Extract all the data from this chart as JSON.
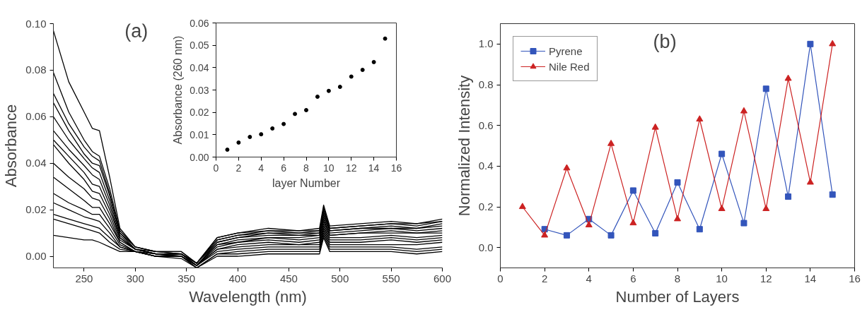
{
  "chart_data": [
    {
      "type": "line",
      "xlabel": "Wavelength (nm)",
      "ylabel": "Absorbance",
      "annotations": [
        "(a)"
      ],
      "xlim": [
        220,
        600
      ],
      "ylim": [
        -0.005,
        0.1
      ],
      "xticks": [
        250,
        300,
        350,
        400,
        450,
        500,
        550,
        600
      ],
      "yticks": [
        {
          "value": 0,
          "label": "0.00"
        },
        {
          "value": 0.02,
          "label": "0.02"
        },
        {
          "value": 0.04,
          "label": "0.04"
        },
        {
          "value": 0.06,
          "label": "0.06"
        },
        {
          "value": 0.08,
          "label": "0.08"
        },
        {
          "value": 0.1,
          "label": "0.10"
        }
      ],
      "x": [
        220,
        235,
        250,
        258,
        265,
        275,
        285,
        300,
        320,
        345,
        360,
        380,
        400,
        430,
        460,
        480,
        484,
        490,
        520,
        550,
        575,
        600
      ],
      "series": [
        {
          "color": "#000000",
          "values": [
            0.097,
            0.075,
            0.062,
            0.055,
            0.054,
            0.034,
            0.012,
            0.004,
            0.002,
            0.002,
            -0.003,
            0.008,
            0.01,
            0.012,
            0.011,
            0.012,
            0.022,
            0.013,
            0.014,
            0.015,
            0.014,
            0.016
          ]
        },
        {
          "color": "#000000",
          "values": [
            0.079,
            0.062,
            0.05,
            0.045,
            0.043,
            0.029,
            0.011,
            0.004,
            0.002,
            0.002,
            -0.003,
            0.008,
            0.01,
            0.011,
            0.011,
            0.011,
            0.021,
            0.012,
            0.013,
            0.014,
            0.014,
            0.015
          ]
        },
        {
          "color": "#000000",
          "values": [
            0.07,
            0.057,
            0.047,
            0.043,
            0.041,
            0.027,
            0.01,
            0.004,
            0.002,
            0.001,
            -0.003,
            0.007,
            0.009,
            0.011,
            0.01,
            0.011,
            0.02,
            0.012,
            0.013,
            0.014,
            0.013,
            0.015
          ]
        },
        {
          "color": "#000000",
          "values": [
            0.066,
            0.054,
            0.044,
            0.04,
            0.039,
            0.026,
            0.01,
            0.003,
            0.002,
            0.001,
            -0.003,
            0.007,
            0.009,
            0.01,
            0.01,
            0.01,
            0.019,
            0.011,
            0.012,
            0.013,
            0.012,
            0.014
          ]
        },
        {
          "color": "#000000",
          "values": [
            0.06,
            0.05,
            0.042,
            0.038,
            0.036,
            0.024,
            0.009,
            0.003,
            0.001,
            0.001,
            -0.003,
            0.006,
            0.008,
            0.01,
            0.009,
            0.01,
            0.018,
            0.011,
            0.012,
            0.012,
            0.012,
            0.013
          ]
        },
        {
          "color": "#000000",
          "values": [
            0.054,
            0.046,
            0.039,
            0.035,
            0.033,
            0.022,
            0.008,
            0.003,
            0.001,
            0.001,
            -0.004,
            0.006,
            0.008,
            0.009,
            0.009,
            0.009,
            0.017,
            0.01,
            0.011,
            0.012,
            0.011,
            0.012
          ]
        },
        {
          "color": "#000000",
          "values": [
            0.05,
            0.043,
            0.036,
            0.031,
            0.03,
            0.02,
            0.008,
            0.003,
            0.001,
            0.001,
            -0.004,
            0.005,
            0.007,
            0.008,
            0.008,
            0.009,
            0.016,
            0.009,
            0.01,
            0.011,
            0.01,
            0.011
          ]
        },
        {
          "color": "#000000",
          "values": [
            0.048,
            0.04,
            0.033,
            0.028,
            0.027,
            0.018,
            0.007,
            0.003,
            0.001,
            0.001,
            -0.004,
            0.005,
            0.006,
            0.008,
            0.007,
            0.008,
            0.015,
            0.009,
            0.01,
            0.01,
            0.01,
            0.01
          ]
        },
        {
          "color": "#000000",
          "values": [
            0.04,
            0.034,
            0.029,
            0.025,
            0.024,
            0.016,
            0.006,
            0.002,
            0.001,
            0.0,
            -0.004,
            0.004,
            0.006,
            0.007,
            0.006,
            0.007,
            0.014,
            0.008,
            0.008,
            0.009,
            0.008,
            0.009
          ]
        },
        {
          "color": "#000000",
          "values": [
            0.034,
            0.029,
            0.024,
            0.021,
            0.021,
            0.014,
            0.006,
            0.002,
            0.001,
            0.0,
            -0.004,
            0.003,
            0.005,
            0.006,
            0.005,
            0.006,
            0.013,
            0.007,
            0.007,
            0.008,
            0.007,
            0.008
          ]
        },
        {
          "color": "#000000",
          "values": [
            0.027,
            0.023,
            0.02,
            0.018,
            0.018,
            0.012,
            0.005,
            0.002,
            0.0,
            0.0,
            -0.004,
            0.003,
            0.004,
            0.005,
            0.005,
            0.005,
            0.012,
            0.006,
            0.006,
            0.007,
            0.006,
            0.007
          ]
        },
        {
          "color": "#000000",
          "values": [
            0.023,
            0.02,
            0.017,
            0.016,
            0.015,
            0.01,
            0.004,
            0.002,
            0.0,
            0.0,
            -0.004,
            0.002,
            0.003,
            0.004,
            0.004,
            0.004,
            0.011,
            0.005,
            0.005,
            0.005,
            0.005,
            0.006
          ]
        },
        {
          "color": "#000000",
          "values": [
            0.018,
            0.016,
            0.014,
            0.013,
            0.012,
            0.008,
            0.004,
            0.002,
            0.0,
            0.0,
            -0.005,
            0.001,
            0.002,
            0.003,
            0.003,
            0.003,
            0.01,
            0.004,
            0.004,
            0.004,
            0.003,
            0.004
          ]
        },
        {
          "color": "#000000",
          "values": [
            0.016,
            0.014,
            0.012,
            0.011,
            0.01,
            0.006,
            0.003,
            0.002,
            0.0,
            0.0,
            -0.005,
            0.001,
            0.001,
            0.002,
            0.002,
            0.002,
            0.009,
            0.003,
            0.003,
            0.003,
            0.002,
            0.003
          ]
        },
        {
          "color": "#000000",
          "values": [
            0.009,
            0.008,
            0.007,
            0.007,
            0.006,
            0.004,
            0.002,
            0.002,
            0.0,
            -0.001,
            -0.005,
            0.0,
            0.0,
            0.001,
            0.001,
            0.001,
            0.008,
            0.002,
            0.002,
            0.002,
            0.001,
            0.002
          ]
        }
      ]
    },
    {
      "type": "scatter",
      "marker": "circle",
      "xlabel": "layer Number",
      "ylabel": "Absorbance (260 nm)",
      "xlim": [
        0,
        16
      ],
      "ylim": [
        0,
        0.06
      ],
      "xticks": [
        0,
        2,
        4,
        6,
        8,
        10,
        12,
        14,
        16
      ],
      "yticks": [
        {
          "value": 0,
          "label": "0.00"
        },
        {
          "value": 0.01,
          "label": "0.01"
        },
        {
          "value": 0.02,
          "label": "0.02"
        },
        {
          "value": 0.03,
          "label": "0.03"
        },
        {
          "value": 0.04,
          "label": "0.04"
        },
        {
          "value": 0.05,
          "label": "0.05"
        },
        {
          "value": 0.06,
          "label": "0.06"
        }
      ],
      "x": [
        1,
        2,
        3,
        4,
        5,
        6,
        7,
        8,
        9,
        10,
        11,
        12,
        13,
        14,
        15
      ],
      "series": [
        {
          "color": "#000000",
          "values": [
            0.0033,
            0.0065,
            0.009,
            0.0102,
            0.0128,
            0.0148,
            0.0193,
            0.021,
            0.027,
            0.0296,
            0.0314,
            0.036,
            0.039,
            0.0425,
            0.053
          ]
        }
      ]
    },
    {
      "type": "line",
      "xlabel": "Number of Layers",
      "ylabel": "Normalized Intensity",
      "annotations": [
        "(b)"
      ],
      "legend": "top left",
      "xlim": [
        0,
        16
      ],
      "ylim": [
        -0.1,
        1.1
      ],
      "xticks": [
        0,
        2,
        4,
        6,
        8,
        10,
        12,
        14,
        16
      ],
      "yticks": [
        {
          "value": 0,
          "label": "0.0"
        },
        {
          "value": 0.2,
          "label": "0.2"
        },
        {
          "value": 0.4,
          "label": "0.4"
        },
        {
          "value": 0.6,
          "label": "0.6"
        },
        {
          "value": 0.8,
          "label": "0.8"
        },
        {
          "value": 1,
          "label": "1.0"
        }
      ],
      "series": [
        {
          "name": "Pyrene",
          "color": "#3355bb",
          "marker": "square",
          "x": [
            2,
            3,
            4,
            5,
            6,
            7,
            8,
            9,
            10,
            11,
            12,
            13,
            14,
            15
          ],
          "values": [
            0.09,
            0.06,
            0.14,
            0.06,
            0.28,
            0.07,
            0.32,
            0.09,
            0.46,
            0.12,
            0.78,
            0.25,
            1.0,
            0.26
          ]
        },
        {
          "name": "Nile Red",
          "color": "#cc2222",
          "marker": "triangle",
          "x": [
            1,
            2,
            3,
            4,
            5,
            6,
            7,
            8,
            9,
            10,
            11,
            12,
            13,
            14,
            15
          ],
          "values": [
            0.2,
            0.06,
            0.39,
            0.11,
            0.51,
            0.12,
            0.59,
            0.14,
            0.63,
            0.19,
            0.67,
            0.19,
            0.83,
            0.32,
            1.0
          ]
        }
      ]
    }
  ]
}
